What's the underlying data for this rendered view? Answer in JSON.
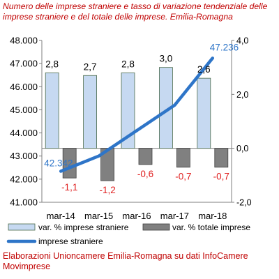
{
  "title": "Numero delle imprese straniere e tasso di variazione tendenziale delle imprese straniere e del totale delle imprese. Emilia-Romagna",
  "footer": "Elaborazioni Unioncamere Emilia-Romagna su dati InfoCamere Movimprese",
  "colors": {
    "bar_stranieri": "#c6d9f1",
    "bar_stranieri_border": "#4a6a4a",
    "bar_totale": "#808080",
    "bar_totale_border": "#404040",
    "line": "#2e75c8",
    "negative_label": "#e02020",
    "line_label": "#2e75c8",
    "text": "#000000"
  },
  "chart_data": {
    "type": "bar",
    "categories": [
      "mar-14",
      "mar-15",
      "mar-16",
      "mar-17",
      "mar-18"
    ],
    "y_left": {
      "ticks": [
        "41.000",
        "42.000",
        "43.000",
        "44.000",
        "45.000",
        "46.000",
        "47.000",
        "48.000"
      ],
      "ylim": [
        41000,
        48000
      ]
    },
    "y_right": {
      "ticks": [
        "-2,0",
        "0,0",
        "2,0",
        "4,0"
      ],
      "ylim": [
        -2,
        4
      ]
    },
    "series": [
      {
        "name": "var. % imprese straniere",
        "type": "bar",
        "axis": "right",
        "values": [
          2.8,
          2.7,
          2.8,
          3.0,
          2.6
        ],
        "labels": [
          "2,8",
          "2,7",
          "2,8",
          "3,0",
          "2,6"
        ]
      },
      {
        "name": "var. % totale imprese",
        "type": "bar",
        "axis": "right",
        "values": [
          -1.1,
          -1.2,
          -0.6,
          -0.7,
          -0.7
        ],
        "labels": [
          "-1,1",
          "-1,2",
          "-0,6",
          "-0,7",
          "-0,7"
        ]
      },
      {
        "name": "imprese straniere",
        "type": "line",
        "axis": "left",
        "values": [
          42342,
          43000,
          44100,
          45200,
          47236
        ],
        "labels": [
          "42.342",
          "",
          "",
          "",
          "47.236"
        ]
      }
    ],
    "legend": {
      "position": "bottom",
      "items": [
        "var. % imprese straniere",
        "var. % totale imprese",
        "imprese straniere"
      ]
    }
  }
}
